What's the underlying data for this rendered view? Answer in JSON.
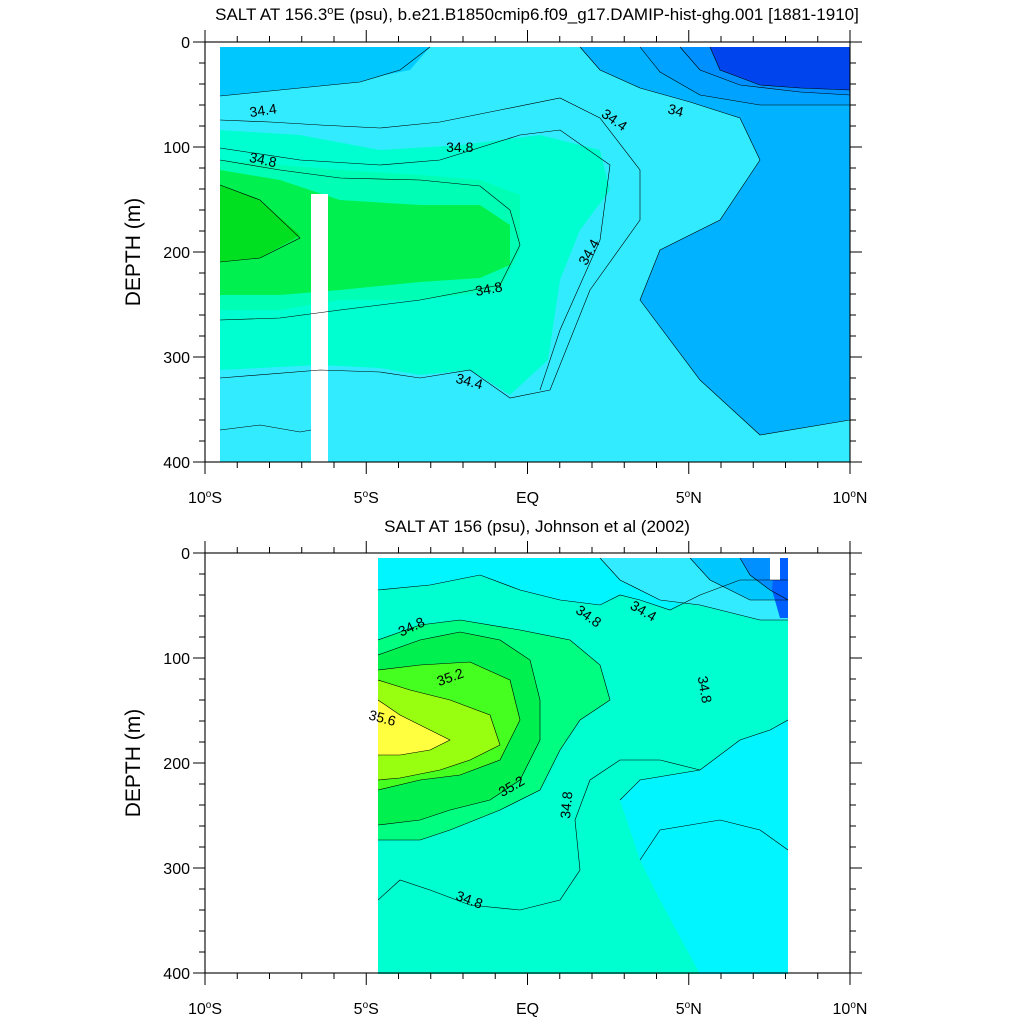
{
  "chart_data": [
    {
      "type": "contour",
      "title": "SALT AT 156.3°E (psu), b.e21.B1850cmip6.f09_g17.DAMIP-hist-ghg.001 [1881-1910]",
      "title_parts": {
        "pre": "SALT AT 156.3",
        "sup": "o",
        "post": "E (psu), b.e21.B1850cmip6.f09_g17.DAMIP-hist-ghg.001 [1881-1910]"
      },
      "ylabel": "DEPTH (m)",
      "xlabel": "",
      "xlim": [
        -10,
        10
      ],
      "ylim": [
        400,
        0
      ],
      "y_inverted": true,
      "x_ticks": [
        {
          "value": -10,
          "pre": "10",
          "sup": "o",
          "post": "S"
        },
        {
          "value": -5,
          "pre": "5",
          "sup": "o",
          "post": "S"
        },
        {
          "value": 0,
          "pre": "EQ",
          "sup": "",
          "post": ""
        },
        {
          "value": 5,
          "pre": "5",
          "sup": "o",
          "post": "N"
        },
        {
          "value": 10,
          "pre": "10",
          "sup": "o",
          "post": "N"
        }
      ],
      "y_ticks": [
        0,
        100,
        200,
        300,
        400
      ],
      "contour_interval": 0.2,
      "contour_labels": [
        {
          "text": "34.4",
          "lon": -8.2,
          "depth": 65,
          "angle": -8
        },
        {
          "text": "34.8",
          "lon": -8.2,
          "depth": 112,
          "angle": 12
        },
        {
          "text": "34.8",
          "lon": -2.1,
          "depth": 100,
          "angle": 0
        },
        {
          "text": "34.4",
          "lon": 2.7,
          "depth": 74,
          "angle": 35
        },
        {
          "text": "34",
          "lon": 4.6,
          "depth": 65,
          "angle": 15
        },
        {
          "text": "34.4",
          "lon": 1.9,
          "depth": 200,
          "angle": -60
        },
        {
          "text": "34.8",
          "lon": -1.2,
          "depth": 235,
          "angle": -10
        },
        {
          "text": "34.4",
          "lon": -1.8,
          "depth": 323,
          "angle": 15
        }
      ],
      "missing_data_columns": [
        {
          "lon_start": -7.1,
          "lon_end": -6.6,
          "depth_start": 145,
          "depth_end": 400
        }
      ]
    },
    {
      "type": "contour",
      "title": "SALT AT 156 (psu), Johnson et al (2002)",
      "title_parts": {
        "pre": "SALT AT 156 (psu), Johnson et al (2002)",
        "sup": "",
        "post": ""
      },
      "ylabel": "DEPTH (m)",
      "xlabel": "",
      "xlim": [
        -10,
        10
      ],
      "ylim": [
        400,
        0
      ],
      "y_inverted": true,
      "data_lon_range": [
        -5,
        8
      ],
      "x_ticks": [
        {
          "value": -10,
          "pre": "10",
          "sup": "o",
          "post": "S"
        },
        {
          "value": -5,
          "pre": "5",
          "sup": "o",
          "post": "S"
        },
        {
          "value": 0,
          "pre": "EQ",
          "sup": "",
          "post": ""
        },
        {
          "value": 5,
          "pre": "5",
          "sup": "o",
          "post": "N"
        },
        {
          "value": 10,
          "pre": "10",
          "sup": "o",
          "post": "N"
        }
      ],
      "y_ticks": [
        0,
        100,
        200,
        300,
        400
      ],
      "contour_interval": 0.2,
      "contour_labels": [
        {
          "text": "34.8",
          "lon": -3.6,
          "depth": 70,
          "angle": -25
        },
        {
          "text": "35.2",
          "lon": -2.4,
          "depth": 118,
          "angle": -20
        },
        {
          "text": "35.6",
          "lon": -4.5,
          "depth": 157,
          "angle": 15
        },
        {
          "text": "34.8",
          "lon": 1.9,
          "depth": 60,
          "angle": 35
        },
        {
          "text": "34.4",
          "lon": 3.6,
          "depth": 55,
          "angle": 30
        },
        {
          "text": "34.8",
          "lon": 5.5,
          "depth": 130,
          "angle": 80
        },
        {
          "text": "35.2",
          "lon": -0.5,
          "depth": 222,
          "angle": -30
        },
        {
          "text": "34.8",
          "lon": 1.2,
          "depth": 240,
          "angle": -85
        },
        {
          "text": "34.8",
          "lon": -1.8,
          "depth": 330,
          "angle": 20
        }
      ]
    }
  ]
}
